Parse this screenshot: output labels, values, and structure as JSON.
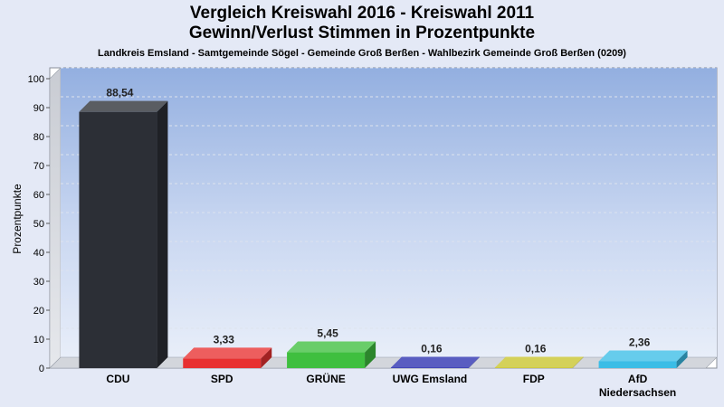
{
  "chart_data": {
    "type": "bar",
    "title": "Vergleich Kreiswahl 2016 - Kreiswahl 2011",
    "subtitle": "Gewinn/Verlust Stimmen in Prozentpunkte",
    "caption": "Landkreis Emsland - Samtgemeinde Sögel - Gemeinde Groß Berßen - Wahlbezirk Gemeinde Groß Berßen (0209)",
    "ylabel": "Prozentpunkte",
    "xlabel": "",
    "ylim": [
      0,
      100
    ],
    "yticks": [
      0,
      10,
      20,
      30,
      40,
      50,
      60,
      70,
      80,
      90,
      100
    ],
    "grid": true,
    "categories": [
      "CDU",
      "SPD",
      "GRÜNE",
      "UWG Emsland",
      "FDP",
      "AfD Niedersachsen"
    ],
    "category_lines": [
      [
        "CDU"
      ],
      [
        "SPD"
      ],
      [
        "GRÜNE"
      ],
      [
        "UWG Emsland"
      ],
      [
        "FDP"
      ],
      [
        "AfD",
        "Niedersachsen"
      ]
    ],
    "values": [
      88.54,
      3.33,
      5.45,
      0.16,
      0.16,
      2.36
    ],
    "value_labels": [
      "88,54",
      "3,33",
      "5,45",
      "0,16",
      "0,16",
      "2,36"
    ],
    "colors": [
      "#2c2f36",
      "#e83030",
      "#3fbf3f",
      "#2a2fb0",
      "#c8c42a",
      "#3bbde6"
    ]
  }
}
